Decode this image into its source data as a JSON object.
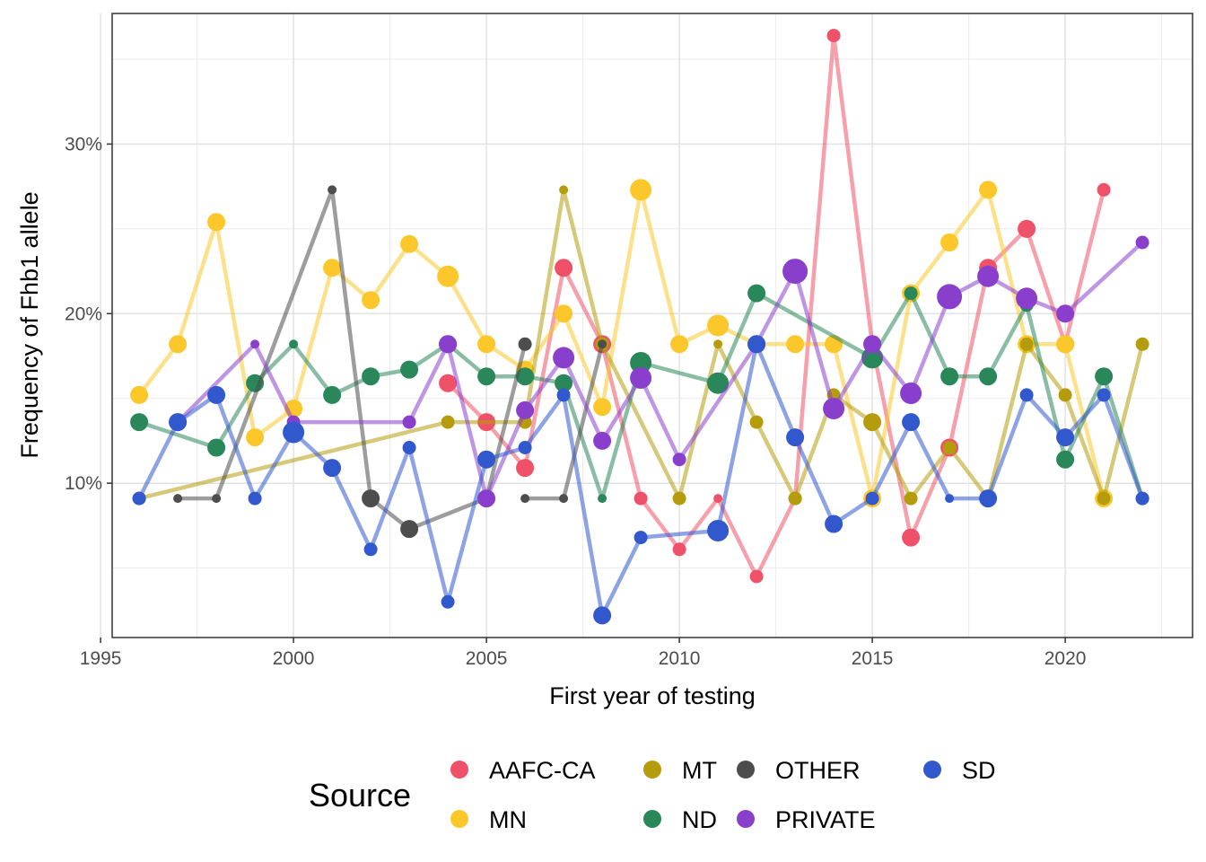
{
  "chart_data": {
    "type": "line",
    "xlabel": "First year of testing",
    "ylabel": "Frequency of Fhb1 allele",
    "xlim": [
      1995.3,
      2023.3
    ],
    "ylim": [
      0.009,
      0.377
    ],
    "x_ticks": [
      1995,
      2000,
      2005,
      2010,
      2015,
      2020
    ],
    "x_tick_labels": [
      "1995",
      "2000",
      "2005",
      "2010",
      "2015",
      "2020"
    ],
    "y_ticks": [
      0.1,
      0.2,
      0.3
    ],
    "y_tick_labels": [
      "10%",
      "20%",
      "30%"
    ],
    "grid": true,
    "legend": {
      "title": "Source",
      "position": "bottom",
      "entries": [
        {
          "name": "AAFC-CA",
          "color": "#ef5268"
        },
        {
          "name": "MN",
          "color": "#fcc72a"
        },
        {
          "name": "MT",
          "color": "#b49c0c"
        },
        {
          "name": "ND",
          "color": "#29875a"
        },
        {
          "name": "OTHER",
          "color": "#4d4d4d"
        },
        {
          "name": "PRIVATE",
          "color": "#8a3fcc"
        },
        {
          "name": "SD",
          "color": "#3158cd"
        }
      ]
    },
    "series": [
      {
        "name": "AAFC-CA",
        "color": "#ef5268",
        "x": [
          2004,
          2005,
          2006,
          2007,
          2008,
          2009,
          2010,
          2011,
          2012,
          2013,
          2014,
          2015,
          2016,
          2017,
          2018,
          2019,
          2020,
          2021
        ],
        "y": [
          0.159,
          0.136,
          0.109,
          0.227,
          0.182,
          0.091,
          0.061,
          0.091,
          0.045,
          0.091,
          0.364,
          0.182,
          0.068,
          0.121,
          0.227,
          0.25,
          0.182,
          0.273
        ],
        "size": [
          3,
          3,
          3,
          3,
          3,
          2,
          2,
          1,
          2,
          2,
          2,
          3,
          3,
          3,
          3,
          3,
          3,
          2
        ]
      },
      {
        "name": "MN",
        "color": "#fcc72a",
        "x": [
          1996,
          1997,
          1998,
          1999,
          2000,
          2001,
          2002,
          2003,
          2004,
          2005,
          2006,
          2007,
          2008,
          2009,
          2010,
          2011,
          2012,
          2013,
          2014,
          2015,
          2016,
          2017,
          2018,
          2019,
          2020,
          2021
        ],
        "y": [
          0.152,
          0.182,
          0.254,
          0.127,
          0.144,
          0.227,
          0.208,
          0.241,
          0.222,
          0.182,
          0.167,
          0.2,
          0.145,
          0.273,
          0.182,
          0.193,
          0.182,
          0.182,
          0.182,
          0.091,
          0.212,
          0.242,
          0.273,
          0.182,
          0.182,
          0.091
        ],
        "size": [
          3,
          3,
          3,
          3,
          3,
          3,
          3,
          3,
          4,
          3,
          3,
          3,
          3,
          4,
          3,
          4,
          3,
          3,
          3,
          3,
          3,
          3,
          3,
          3,
          3,
          3
        ]
      },
      {
        "name": "MT",
        "color": "#b49c0c",
        "x": [
          1996,
          2004,
          2006,
          2007,
          2008,
          2010,
          2011,
          2012,
          2013,
          2014,
          2015,
          2016,
          2017,
          2018,
          2019,
          2020,
          2021,
          2022
        ],
        "y": [
          0.091,
          0.136,
          0.136,
          0.273,
          0.182,
          0.091,
          0.182,
          0.136,
          0.091,
          0.152,
          0.136,
          0.091,
          0.121,
          0.091,
          0.182,
          0.152,
          0.091,
          0.182
        ],
        "size": [
          2,
          2,
          2,
          1,
          2,
          2,
          1,
          2,
          2,
          2,
          3,
          2,
          2,
          2,
          2,
          2,
          2,
          2
        ]
      },
      {
        "name": "ND",
        "color": "#29875a",
        "x": [
          1996,
          1998,
          1999,
          2000,
          2001,
          2002,
          2003,
          2004,
          2005,
          2006,
          2007,
          2008,
          2009,
          2011,
          2012,
          2015,
          2016,
          2017,
          2018,
          2019,
          2020,
          2021,
          2022
        ],
        "y": [
          0.136,
          0.121,
          0.159,
          0.182,
          0.152,
          0.163,
          0.167,
          0.182,
          0.163,
          0.163,
          0.159,
          0.091,
          0.171,
          0.159,
          0.212,
          0.174,
          0.212,
          0.163,
          0.163,
          0.205,
          0.114,
          0.163,
          0.091
        ],
        "size": [
          3,
          3,
          3,
          1,
          3,
          3,
          3,
          3,
          3,
          3,
          3,
          1,
          4,
          4,
          3,
          4,
          2,
          3,
          3,
          2,
          3,
          3,
          2
        ]
      },
      {
        "name": "OTHER",
        "color": "#4d4d4d",
        "x": [
          1997,
          1998,
          2001,
          2002,
          2003,
          2005,
          2006
        ],
        "y": [
          0.091,
          0.091,
          0.273,
          0.091,
          0.073,
          0.091,
          0.182
        ],
        "size": [
          1,
          1,
          1,
          3,
          3,
          1,
          2
        ]
      },
      {
        "name": "OTHER",
        "color": "#4d4d4d",
        "x": [
          2006,
          2007,
          2008
        ],
        "y": [
          0.091,
          0.091,
          0.182
        ],
        "size": [
          1,
          1,
          1
        ]
      },
      {
        "name": "PRIVATE",
        "color": "#8a3fcc",
        "x": [
          1997,
          1999,
          2000,
          2003,
          2004,
          2005,
          2006,
          2007,
          2008,
          2009,
          2010,
          2012,
          2013,
          2014,
          2015,
          2016,
          2017,
          2018,
          2019,
          2020,
          2022
        ],
        "y": [
          0.136,
          0.182,
          0.136,
          0.136,
          0.182,
          0.091,
          0.143,
          0.174,
          0.125,
          0.162,
          0.114,
          0.182,
          0.225,
          0.144,
          0.182,
          0.153,
          0.21,
          0.222,
          0.209,
          0.2,
          0.242
        ],
        "size": [
          3,
          1,
          2,
          2,
          3,
          3,
          3,
          4,
          3,
          4,
          2,
          3,
          5,
          4,
          3,
          4,
          5,
          4,
          4,
          3,
          2
        ]
      },
      {
        "name": "SD",
        "color": "#3158cd",
        "x": [
          1996,
          1997,
          1998,
          1999,
          2000,
          2001,
          2002,
          2003,
          2004,
          2005,
          2006,
          2007,
          2008,
          2009,
          2011,
          2012,
          2013,
          2014,
          2015,
          2016,
          2017,
          2018,
          2019,
          2020,
          2021,
          2022
        ],
        "y": [
          0.091,
          0.136,
          0.152,
          0.091,
          0.13,
          0.109,
          0.061,
          0.121,
          0.03,
          0.114,
          0.121,
          0.152,
          0.022,
          0.068,
          0.072,
          0.182,
          0.127,
          0.076,
          0.091,
          0.136,
          0.091,
          0.091,
          0.152,
          0.127,
          0.152,
          0.091
        ],
        "size": [
          2,
          3,
          3,
          2,
          4,
          3,
          2,
          2,
          2,
          3,
          2,
          2,
          3,
          2,
          4,
          3,
          3,
          3,
          2,
          3,
          1,
          3,
          2,
          3,
          2,
          2
        ]
      }
    ]
  }
}
